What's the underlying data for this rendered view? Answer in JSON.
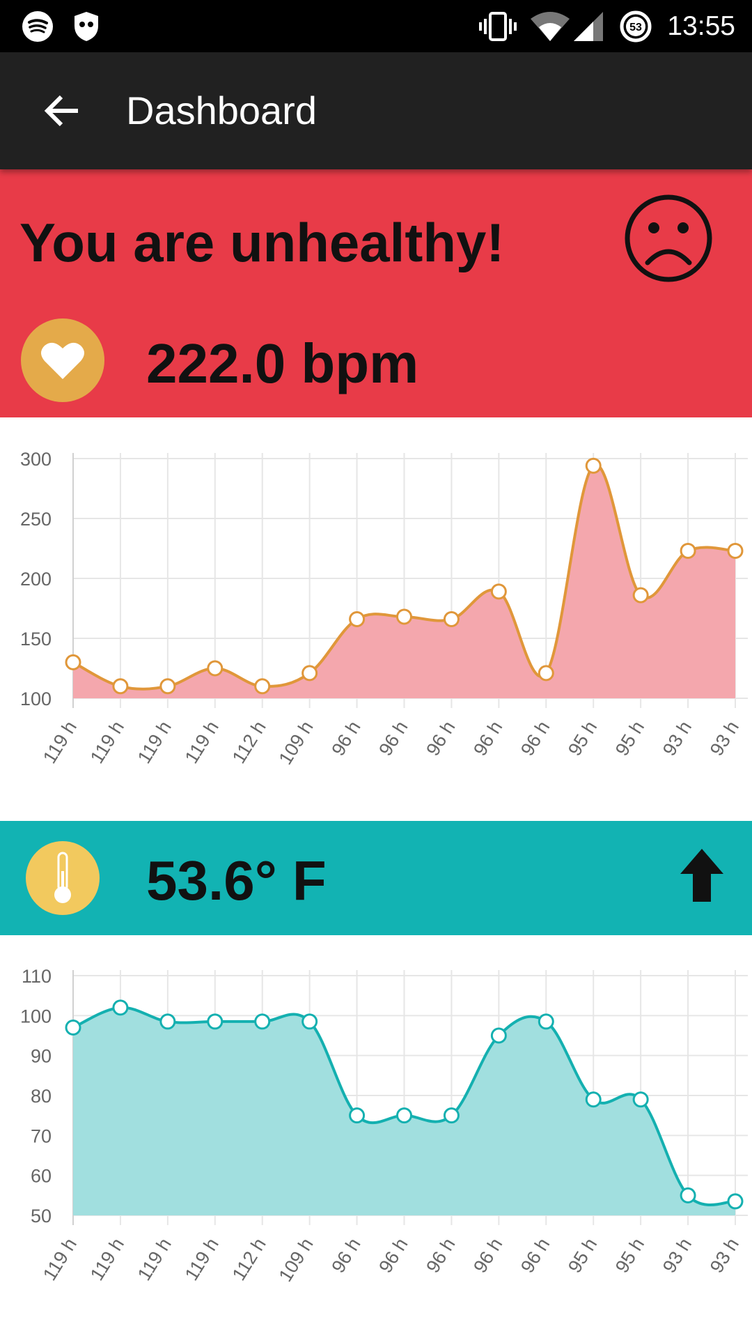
{
  "status_bar": {
    "time": "13:55",
    "icons": [
      "spotify-icon",
      "shield-icon",
      "vibrate-icon",
      "wifi-icon",
      "signal-icon",
      "data-saver-icon"
    ],
    "badge_number": "53"
  },
  "app_bar": {
    "title": "Dashboard",
    "back_icon": "arrow-back-icon",
    "action_icon": "database-add-icon",
    "action_color": "#F36B1C"
  },
  "health": {
    "message": "You are unhealthy!",
    "mood_icon": "sad-face-icon",
    "heart_rate": "222.0 bpm",
    "panel_color": "#E83B48"
  },
  "temperature": {
    "value": "53.6° F",
    "trend_icon": "arrow-up-icon",
    "panel_color": "#12B3B3"
  },
  "chart_data": [
    {
      "type": "area",
      "categories": [
        "119 h",
        "119 h",
        "119 h",
        "119 h",
        "112 h",
        "109 h",
        "96 h",
        "96 h",
        "96 h",
        "96 h",
        "96 h",
        "95 h",
        "95 h",
        "93 h",
        "93 h"
      ],
      "values": [
        130,
        110,
        110,
        125,
        110,
        121,
        166,
        168,
        166,
        189,
        121,
        294,
        186,
        223,
        223
      ],
      "ylim": [
        100,
        300
      ],
      "yticks": [
        100,
        150,
        200,
        250,
        300
      ],
      "grid": true,
      "line_color": "#E0973A",
      "fill_color": "#F4A7AD"
    },
    {
      "type": "area",
      "categories": [
        "119 h",
        "119 h",
        "119 h",
        "119 h",
        "112 h",
        "109 h",
        "96 h",
        "96 h",
        "96 h",
        "96 h",
        "96 h",
        "95 h",
        "95 h",
        "93 h",
        "93 h"
      ],
      "values": [
        97,
        102,
        98.5,
        98.5,
        98.5,
        98.5,
        75,
        75,
        75,
        95,
        98.5,
        79,
        79,
        55,
        53.5
      ],
      "ylim": [
        50,
        110
      ],
      "yticks": [
        50,
        60,
        70,
        80,
        90,
        100,
        110
      ],
      "grid": true,
      "line_color": "#14B0B0",
      "fill_color": "#A1DFDF"
    }
  ]
}
